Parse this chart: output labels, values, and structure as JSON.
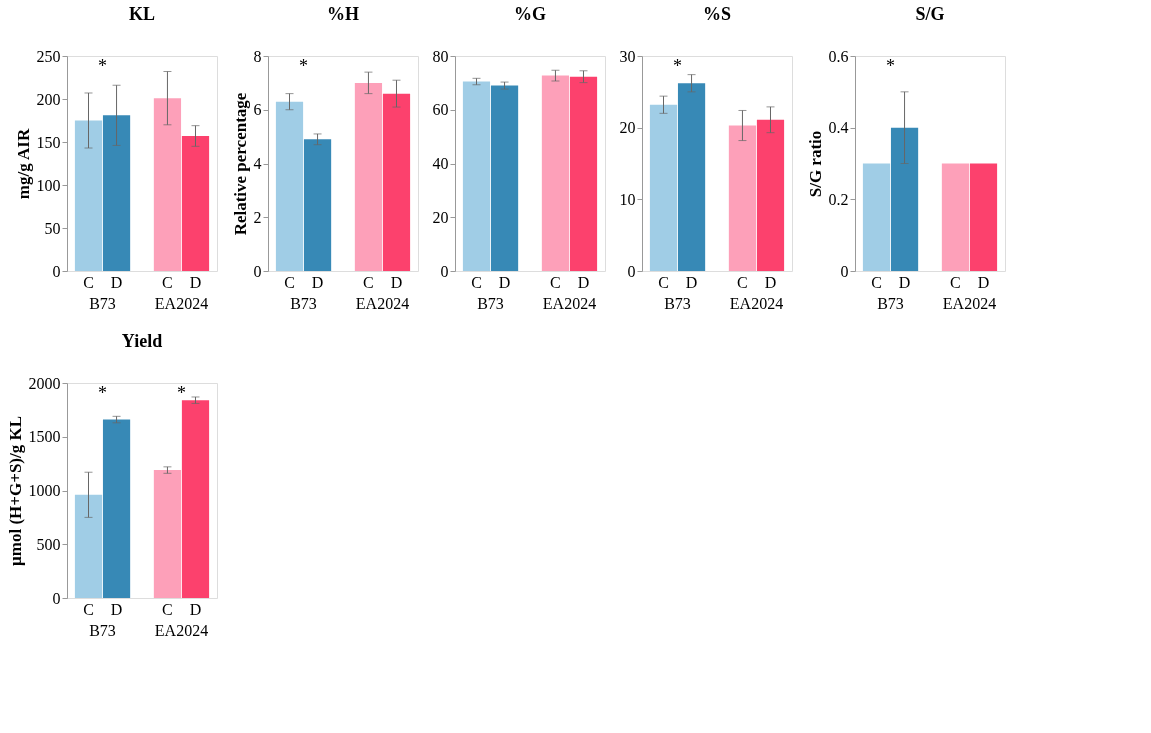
{
  "chart_data": [
    {
      "type": "bar",
      "title": "KL",
      "ylabel": "mg/g AIR",
      "categories": [
        "B73",
        "EA2024"
      ],
      "ylim": [
        0,
        250
      ],
      "yticks": [
        0,
        50,
        100,
        150,
        200,
        250
      ],
      "grid": false,
      "series": [
        {
          "name": "C",
          "colors": [
            "#a0cde6",
            "#fda0b9"
          ],
          "values": [
            175,
            201
          ],
          "errors": [
            32,
            31
          ]
        },
        {
          "name": "D",
          "colors": [
            "#3789b6",
            "#fc416d"
          ],
          "values": [
            181,
            157
          ],
          "errors": [
            35,
            12
          ]
        }
      ],
      "annotations": [
        "*"
      ]
    },
    {
      "type": "bar",
      "title": "%H",
      "ylabel": "Relative percentage",
      "categories": [
        "B73",
        "EA2024"
      ],
      "ylim": [
        0,
        8
      ],
      "yticks": [
        0,
        2,
        4,
        6,
        8
      ],
      "grid": false,
      "series": [
        {
          "name": "C",
          "colors": [
            "#a0cde6",
            "#fda0b9"
          ],
          "values": [
            6.3,
            7.0
          ],
          "errors": [
            0.3,
            0.4
          ]
        },
        {
          "name": "D",
          "colors": [
            "#3789b6",
            "#fc416d"
          ],
          "values": [
            4.9,
            6.6
          ],
          "errors": [
            0.2,
            0.5
          ]
        }
      ],
      "annotations": [
        "*"
      ]
    },
    {
      "type": "bar",
      "title": "%G",
      "categories": [
        "B73",
        "EA2024"
      ],
      "ylim": [
        0,
        80
      ],
      "yticks": [
        0,
        20,
        40,
        60,
        80
      ],
      "grid": false,
      "series": [
        {
          "name": "C",
          "colors": [
            "#a0cde6",
            "#fda0b9"
          ],
          "values": [
            70.5,
            72.7
          ],
          "errors": [
            1.2,
            2.0
          ]
        },
        {
          "name": "D",
          "colors": [
            "#3789b6",
            "#fc416d"
          ],
          "values": [
            69,
            72.3
          ],
          "errors": [
            1.3,
            2.2
          ]
        }
      ]
    },
    {
      "type": "bar",
      "title": "%S",
      "categories": [
        "B73",
        "EA2024"
      ],
      "ylim": [
        0,
        30
      ],
      "yticks": [
        0,
        10,
        20,
        30
      ],
      "grid": false,
      "series": [
        {
          "name": "C",
          "colors": [
            "#a0cde6",
            "#fda0b9"
          ],
          "values": [
            23.2,
            20.3
          ],
          "errors": [
            1.2,
            2.1
          ]
        },
        {
          "name": "D",
          "colors": [
            "#3789b6",
            "#fc416d"
          ],
          "values": [
            26.2,
            21.1
          ],
          "errors": [
            1.2,
            1.8
          ]
        }
      ],
      "annotations": [
        "*"
      ]
    },
    {
      "type": "bar",
      "title": "S/G",
      "ylabel": "S/G ratio",
      "categories": [
        "B73",
        "EA2024"
      ],
      "ylim": [
        0,
        0.6
      ],
      "yticks": [
        0,
        0.2,
        0.4,
        0.6
      ],
      "grid": false,
      "series": [
        {
          "name": "C",
          "colors": [
            "#a0cde6",
            "#fda0b9"
          ],
          "values": [
            0.3,
            0.3
          ],
          "errors": [
            null,
            null
          ]
        },
        {
          "name": "D",
          "colors": [
            "#3789b6",
            "#fc416d"
          ],
          "values": [
            0.4,
            0.3
          ],
          "errors": [
            0.1,
            null
          ]
        }
      ],
      "annotations": [
        "*"
      ]
    },
    {
      "type": "bar",
      "title": "Yield",
      "ylabel": "µmol (H+G+S)/g KL",
      "categories": [
        "B73",
        "EA2024"
      ],
      "ylim": [
        0,
        2000
      ],
      "yticks": [
        0,
        500,
        1000,
        1500,
        2000
      ],
      "grid": false,
      "series": [
        {
          "name": "C",
          "colors": [
            "#a0cde6",
            "#fda0b9"
          ],
          "values": [
            960,
            1190
          ],
          "errors": [
            210,
            30
          ]
        },
        {
          "name": "D",
          "colors": [
            "#3789b6",
            "#fc416d"
          ],
          "values": [
            1660,
            1840
          ],
          "errors": [
            30,
            30
          ]
        }
      ],
      "annotations": [
        "*",
        "*"
      ]
    }
  ]
}
